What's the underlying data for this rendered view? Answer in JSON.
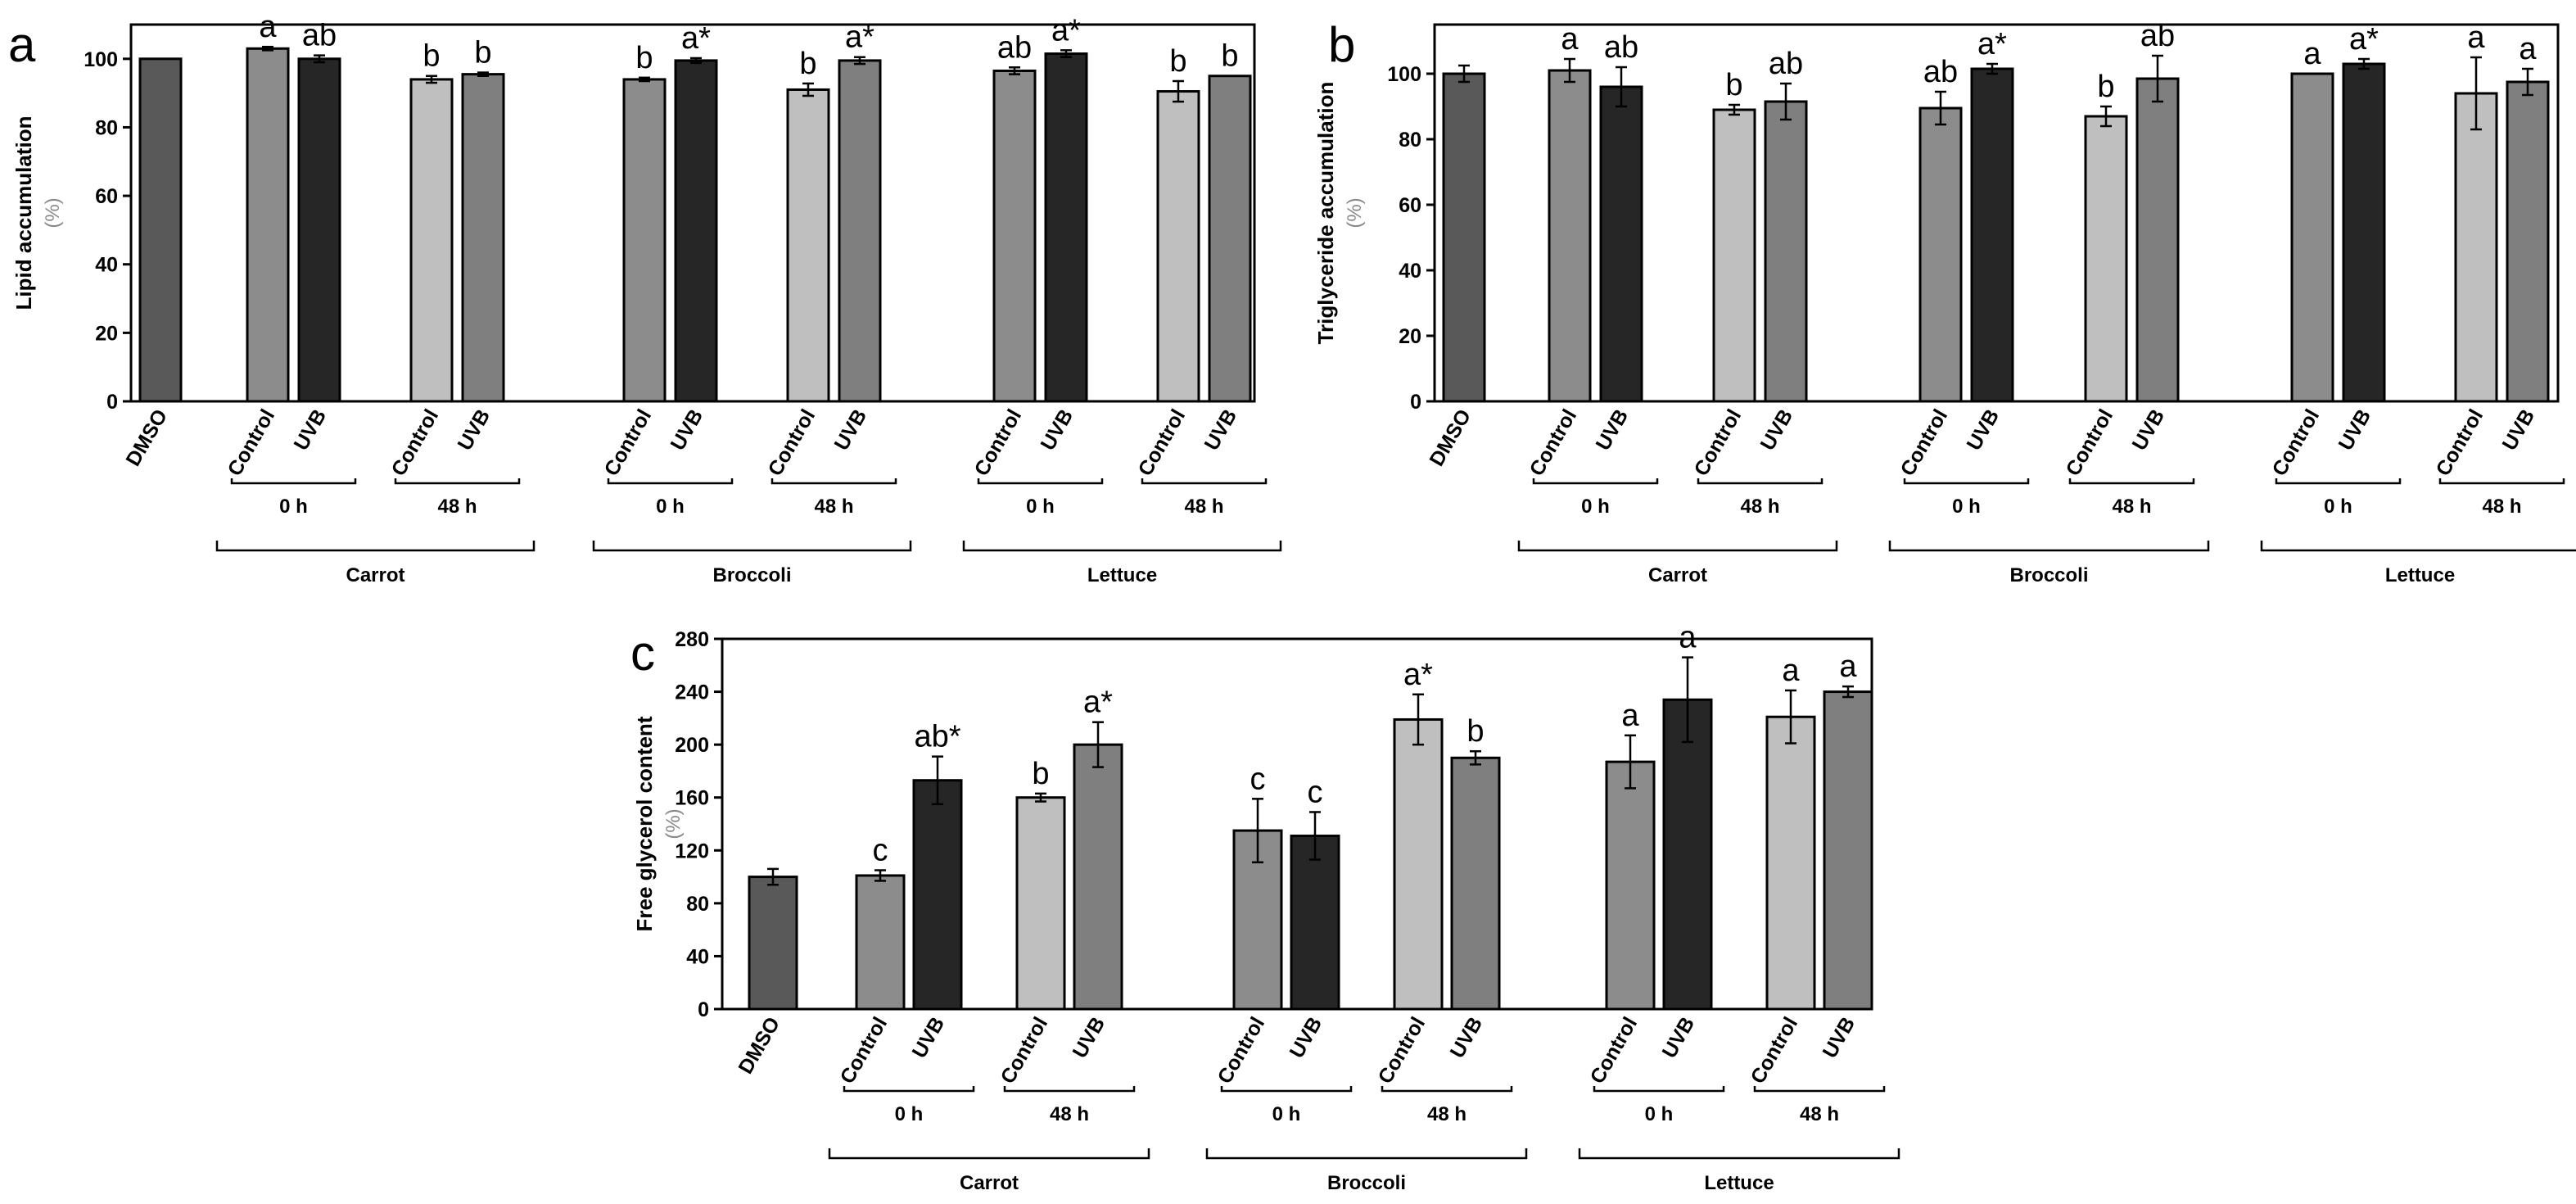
{
  "colors": {
    "DMSO": "#595959",
    "Control0": "#8c8c8c",
    "UVB0": "#262626",
    "Control48": "#bfbfbf",
    "UVB48": "#7f7f7f"
  },
  "chart_data": [
    {
      "panel": "a",
      "type": "bar",
      "ylabel": "Lipid accumulation",
      "yunit": "(%)",
      "ylim": [
        0,
        110
      ],
      "yticks": [
        0,
        20,
        40,
        60,
        80,
        100
      ],
      "categories": [
        "DMSO",
        "Control",
        "UVB",
        "Control",
        "UVB",
        "Control",
        "UVB",
        "Control",
        "UVB",
        "Control",
        "UVB",
        "Control",
        "UVB"
      ],
      "series_keys": [
        "DMSO",
        "Control0",
        "UVB0",
        "Control48",
        "UVB48",
        "Control0",
        "UVB0",
        "Control48",
        "UVB48",
        "Control0",
        "UVB0",
        "Control48",
        "UVB48"
      ],
      "values": [
        100,
        103,
        100,
        94,
        95.5,
        94,
        99.5,
        91,
        99.5,
        96.5,
        101.5,
        90.5,
        95
      ],
      "errors": [
        0,
        0.5,
        1,
        1,
        0.5,
        0.5,
        0.7,
        1.8,
        1,
        1,
        1,
        3,
        0
      ],
      "sig": [
        "",
        "a",
        "ab",
        "b",
        "b",
        "b",
        "a*",
        "b",
        "a*",
        "ab",
        "a*",
        "b",
        "b"
      ],
      "time_groups": [
        "0 h",
        "48 h",
        "0 h",
        "48 h",
        "0 h",
        "48 h"
      ],
      "vegetables": [
        "Carrot",
        "Broccoli",
        "Lettuce"
      ]
    },
    {
      "panel": "b",
      "type": "bar",
      "ylabel": "Triglyceride accumulation",
      "yunit": "(%)",
      "ylim": [
        0,
        115
      ],
      "yticks": [
        0,
        20,
        40,
        60,
        80,
        100
      ],
      "categories": [
        "DMSO",
        "Control",
        "UVB",
        "Control",
        "UVB",
        "Control",
        "UVB",
        "Control",
        "UVB",
        "Control",
        "UVB",
        "Control",
        "UVB"
      ],
      "series_keys": [
        "DMSO",
        "Control0",
        "UVB0",
        "Control48",
        "UVB48",
        "Control0",
        "UVB0",
        "Control48",
        "UVB48",
        "Control0",
        "UVB0",
        "Control48",
        "UVB48"
      ],
      "values": [
        100,
        101,
        96,
        89,
        91.5,
        89.5,
        101.5,
        87,
        98.5,
        100,
        103,
        94,
        97.5
      ],
      "errors": [
        2.5,
        3.5,
        6,
        1.5,
        5.5,
        5,
        1.5,
        3,
        7,
        0,
        1.5,
        11,
        4
      ],
      "sig": [
        "",
        "a",
        "ab",
        "b",
        "ab",
        "ab",
        "a*",
        "b",
        "ab",
        "a",
        "a*",
        "a",
        "a"
      ],
      "time_groups": [
        "0 h",
        "48 h",
        "0 h",
        "48 h",
        "0 h",
        "48 h"
      ],
      "vegetables": [
        "Carrot",
        "Broccoli",
        "Lettuce"
      ]
    },
    {
      "panel": "c",
      "type": "bar",
      "ylabel": "Free glycerol content",
      "yunit": "(%)",
      "ylim": [
        0,
        280
      ],
      "yticks": [
        0,
        40,
        80,
        120,
        160,
        200,
        240,
        280
      ],
      "categories": [
        "DMSO",
        "Control",
        "UVB",
        "Control",
        "UVB",
        "Control",
        "UVB",
        "Control",
        "UVB",
        "Control",
        "UVB",
        "Control",
        "UVB"
      ],
      "series_keys": [
        "DMSO",
        "Control0",
        "UVB0",
        "Control48",
        "UVB48",
        "Control0",
        "UVB0",
        "Control48",
        "UVB48",
        "Control0",
        "UVB0",
        "Control48",
        "UVB48"
      ],
      "values": [
        100,
        101,
        173,
        160,
        200,
        135,
        131,
        219,
        190,
        187,
        234,
        221,
        240
      ],
      "errors": [
        6,
        4,
        18,
        3,
        17,
        24,
        18,
        19,
        5,
        20,
        32,
        20,
        4
      ],
      "sig": [
        "",
        "c",
        "ab*",
        "b",
        "a*",
        "c",
        "c",
        "a*",
        "b",
        "a",
        "a",
        "a",
        "a"
      ],
      "time_groups": [
        "0 h",
        "48 h",
        "0 h",
        "48 h",
        "0 h",
        "48 h"
      ],
      "vegetables": [
        "Carrot",
        "Broccoli",
        "Lettuce"
      ]
    }
  ]
}
